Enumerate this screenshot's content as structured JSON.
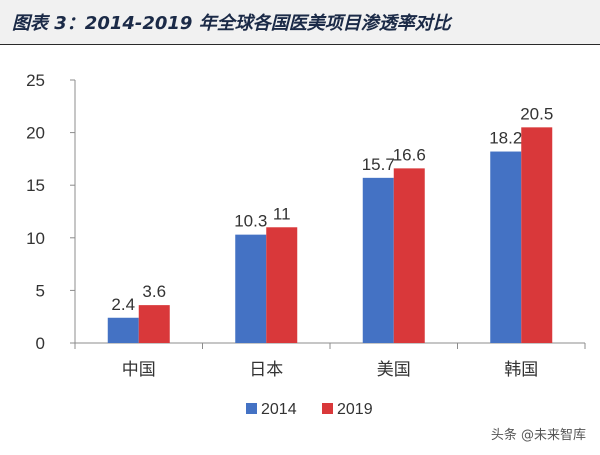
{
  "title": "图表 3：2014-2019 年全球各国医美项目渗透率对比",
  "watermark": "头条 @未来智库",
  "colors": {
    "s2014": "#4472c4",
    "s2019": "#d9383a",
    "axis": "#8c8c8c",
    "text": "#333333"
  },
  "chart_data": {
    "type": "bar",
    "title": "图表 3：2014-2019 年全球各国医美项目渗透率对比",
    "xlabel": "",
    "ylabel": "",
    "categories": [
      "中国",
      "日本",
      "美国",
      "韩国"
    ],
    "series": [
      {
        "name": "2014",
        "values": [
          2.4,
          10.3,
          15.7,
          18.2
        ],
        "labels": [
          "2.4",
          "10.3",
          "15.7",
          "18.2"
        ]
      },
      {
        "name": "2019",
        "values": [
          3.6,
          11,
          16.6,
          20.5
        ],
        "labels": [
          "3.6",
          "11",
          "16.6",
          "20.5"
        ]
      }
    ],
    "ylim": [
      0,
      25
    ],
    "yticks": [
      0,
      5,
      10,
      15,
      20,
      25
    ],
    "grid": false,
    "legend": "bottom"
  }
}
